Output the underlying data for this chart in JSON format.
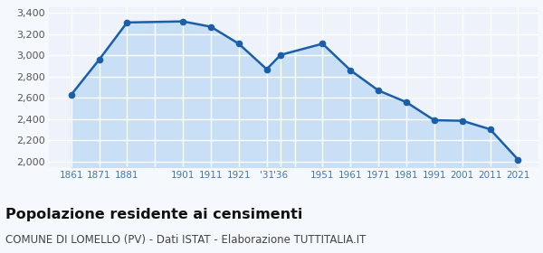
{
  "years": [
    1861,
    1871,
    1881,
    1901,
    1911,
    1921,
    1931,
    1936,
    1951,
    1961,
    1971,
    1981,
    1991,
    2001,
    2011,
    2021
  ],
  "population": [
    2630,
    2960,
    3310,
    3320,
    3270,
    3110,
    2870,
    3005,
    3110,
    2860,
    2670,
    2560,
    2390,
    2385,
    2305,
    2020
  ],
  "xtick_positions": [
    1861,
    1871,
    1881,
    1891,
    1901,
    1911,
    1921,
    1931,
    1936,
    1941,
    1951,
    1961,
    1971,
    1981,
    1991,
    2001,
    2011,
    2021
  ],
  "xtick_labels": [
    "1861",
    "1871",
    "1881",
    "",
    "1901",
    "1911",
    "1921",
    "'31",
    "'36",
    "",
    "1951",
    "1961",
    "1971",
    "1981",
    "1991",
    "2001",
    "2011",
    "2021"
  ],
  "line_color": "#1a5fa8",
  "fill_color": "#c8dff5",
  "marker_color": "#1a5fa8",
  "plot_bg_color": "#edf2fb",
  "fig_bg_color": "#f5f8fc",
  "grid_color": "#ffffff",
  "ylim": [
    1950,
    3450
  ],
  "yticks": [
    2000,
    2200,
    2400,
    2600,
    2800,
    3000,
    3200,
    3400
  ],
  "xlim_left": 1853,
  "xlim_right": 2028,
  "title": "Popolazione residente ai censimenti",
  "subtitle": "COMUNE DI LOMELLO (PV) - Dati ISTAT - Elaborazione TUTTITALIA.IT",
  "title_fontsize": 11.5,
  "subtitle_fontsize": 8.5,
  "tick_label_color": "#4477aa",
  "ytick_label_color": "#555555"
}
